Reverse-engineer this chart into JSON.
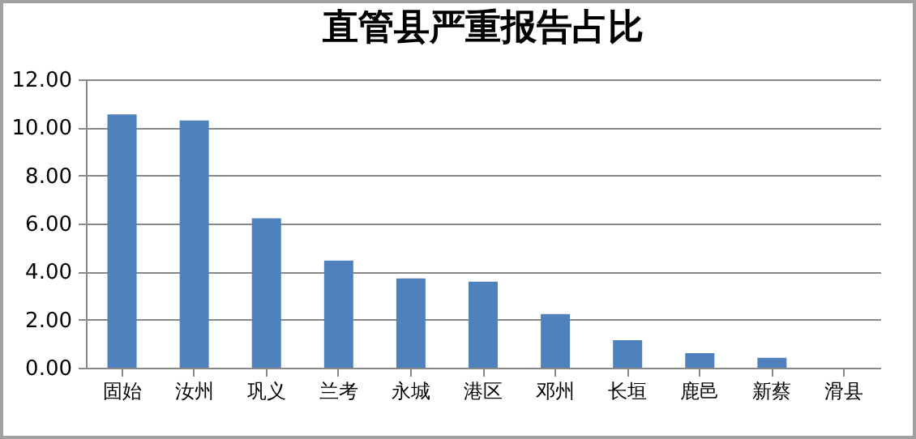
{
  "chart_data": {
    "type": "bar",
    "title": "直管县严重报告占比",
    "categories": [
      "固始",
      "汝州",
      "巩义",
      "兰考",
      "永城",
      "港区",
      "邓州",
      "长垣",
      "鹿邑",
      "新蔡",
      "滑县"
    ],
    "values": [
      10.54,
      10.29,
      6.22,
      4.46,
      3.72,
      3.58,
      2.23,
      1.15,
      0.61,
      0.41,
      0
    ],
    "color": "#4f81bd",
    "ylim": [
      0,
      12
    ],
    "yticks": [
      {
        "value": 0,
        "label": "0.00"
      },
      {
        "value": 2,
        "label": "2.00"
      },
      {
        "value": 4,
        "label": "4.00"
      },
      {
        "value": 6,
        "label": "6.00"
      },
      {
        "value": 8,
        "label": "8.00"
      },
      {
        "value": 10,
        "label": "10.00"
      },
      {
        "value": 12,
        "label": "12.00"
      }
    ],
    "grid": "y"
  }
}
